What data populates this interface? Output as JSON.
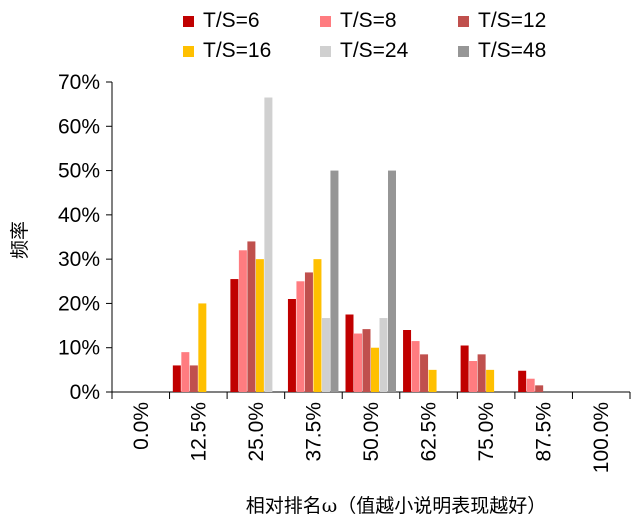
{
  "chart_data": {
    "type": "bar",
    "categories": [
      "0.0%",
      "12.5%",
      "25.0%",
      "37.5%",
      "50.0%",
      "62.5%",
      "75.0%",
      "87.5%",
      "100.0%"
    ],
    "series": [
      {
        "name": "T/S=6",
        "color": "#c00000",
        "values": [
          0,
          6,
          25.5,
          21,
          17.5,
          14,
          10.5,
          4.8,
          0
        ]
      },
      {
        "name": "T/S=8",
        "color": "#ff7c80",
        "values": [
          0,
          9,
          32,
          25,
          13.2,
          11.5,
          7,
          3,
          0
        ]
      },
      {
        "name": "T/S=12",
        "color": "#c0504d",
        "values": [
          0,
          6,
          34,
          27,
          14.2,
          8.5,
          8.5,
          1.5,
          0
        ]
      },
      {
        "name": "T/S=16",
        "color": "#ffc000",
        "values": [
          0,
          20,
          30,
          30,
          10,
          5,
          5,
          0,
          0
        ]
      },
      {
        "name": "T/S=24",
        "color": "#d0d0d0",
        "values": [
          0,
          0,
          66.5,
          16.7,
          16.7,
          0,
          0,
          0,
          0
        ]
      },
      {
        "name": "T/S=48",
        "color": "#969696",
        "values": [
          0,
          0,
          0,
          50,
          50,
          0,
          0,
          0,
          0
        ]
      }
    ],
    "y_ticks": [
      "0%",
      "10%",
      "20%",
      "30%",
      "40%",
      "50%",
      "60%",
      "70%"
    ],
    "ylim": [
      0,
      70
    ],
    "ylabel": "频率",
    "xlabel": "相对排名ω（值越小说明表现越好）",
    "legend_position": "top",
    "grid": false
  }
}
